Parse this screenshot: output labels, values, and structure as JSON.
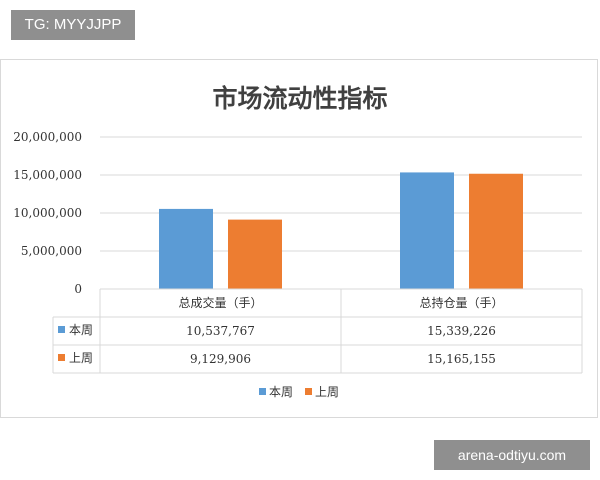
{
  "watermark_top": "TG: MYYJJPP",
  "watermark_bottom": "arena-odtiyu.com",
  "chart_data": {
    "type": "bar",
    "title": "市场流动性指标",
    "categories": [
      "总成交量（手）",
      "总持仓量（手）"
    ],
    "series": [
      {
        "name": "本周",
        "color": "#5b9bd5",
        "values": [
          10537767,
          15339226
        ],
        "labels": [
          "10,537,767",
          "15,339,226"
        ]
      },
      {
        "name": "上周",
        "color": "#ed7d31",
        "values": [
          9129906,
          15165155
        ],
        "labels": [
          "9,129,906",
          "15,165,155"
        ]
      }
    ],
    "ylim": [
      0,
      20000000
    ],
    "yticks": [
      {
        "value": 0,
        "label": "0"
      },
      {
        "value": 5000000,
        "label": "5,000,000"
      },
      {
        "value": 10000000,
        "label": "10,000,000"
      },
      {
        "value": 15000000,
        "label": "15,000,000"
      },
      {
        "value": 20000000,
        "label": "20,000,000"
      }
    ],
    "grid": true,
    "legend": "bottom",
    "data_table": true
  }
}
